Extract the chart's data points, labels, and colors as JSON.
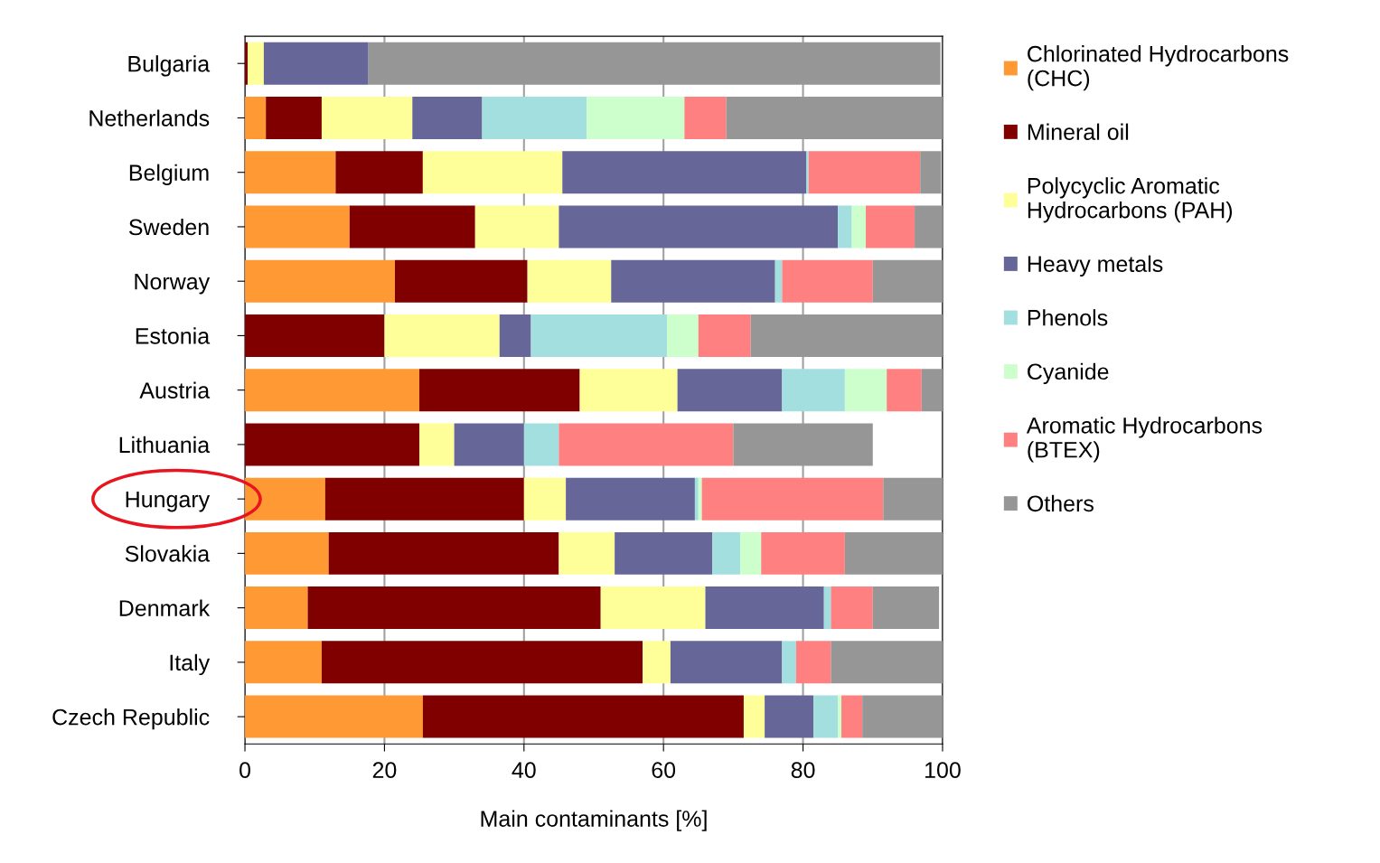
{
  "chart_data": {
    "type": "bar",
    "orientation": "horizontal",
    "stacked": true,
    "xlabel": "Main contaminants [%]",
    "categories": [
      "Bulgaria",
      "Netherlands",
      "Belgium",
      "Sweden",
      "Norway",
      "Estonia",
      "Austria",
      "Lithuania",
      "Hungary",
      "Slovakia",
      "Denmark",
      "Italy",
      "Czech Republic"
    ],
    "series": [
      {
        "name": "Chlorinated Hydrocarbons\n(CHC)",
        "color": "#ff9933",
        "values": [
          0,
          3,
          13,
          15,
          21.5,
          0,
          25,
          0,
          11.5,
          12,
          9,
          11,
          25.5
        ]
      },
      {
        "name": "Mineral oil",
        "color": "#800000",
        "values": [
          0.4,
          8,
          12.5,
          18,
          19,
          20,
          23,
          25,
          28.5,
          33,
          42,
          46,
          46
        ]
      },
      {
        "name": "Polycyclic Aromatic\nHydrocarbons (PAH)",
        "color": "#ffff99",
        "values": [
          2.3,
          13,
          20,
          12,
          12,
          16.5,
          14,
          5,
          6,
          8,
          15,
          4,
          3
        ]
      },
      {
        "name": "Heavy metals",
        "color": "#666699",
        "values": [
          15,
          10,
          35,
          40,
          23.5,
          4.5,
          15,
          10,
          18.5,
          14,
          17,
          16,
          7
        ]
      },
      {
        "name": "Phenols",
        "color": "#a3dfdf",
        "values": [
          0,
          15,
          0.3,
          2,
          1,
          19.5,
          9,
          5,
          0.5,
          4,
          1,
          2,
          3.5
        ]
      },
      {
        "name": "Cyanide",
        "color": "#ccffcc",
        "values": [
          0,
          14,
          0,
          2,
          0,
          4.5,
          6,
          0,
          0.5,
          3,
          0,
          0,
          0.5
        ]
      },
      {
        "name": "Aromatic Hydrocarbons\n(BTEX)",
        "color": "#ff8080",
        "values": [
          0,
          6,
          16,
          7,
          13,
          7.5,
          5,
          25,
          26,
          12,
          6,
          5,
          3
        ]
      },
      {
        "name": "Others",
        "color": "#969696",
        "values": [
          82,
          31,
          3,
          4,
          10,
          27.5,
          3,
          20,
          8.5,
          14,
          9.5,
          16,
          11.5
        ]
      }
    ],
    "xlim": [
      0,
      100
    ],
    "xticks": [
      0,
      20,
      40,
      60,
      80,
      100
    ],
    "grid": "x",
    "legend": "right"
  }
}
